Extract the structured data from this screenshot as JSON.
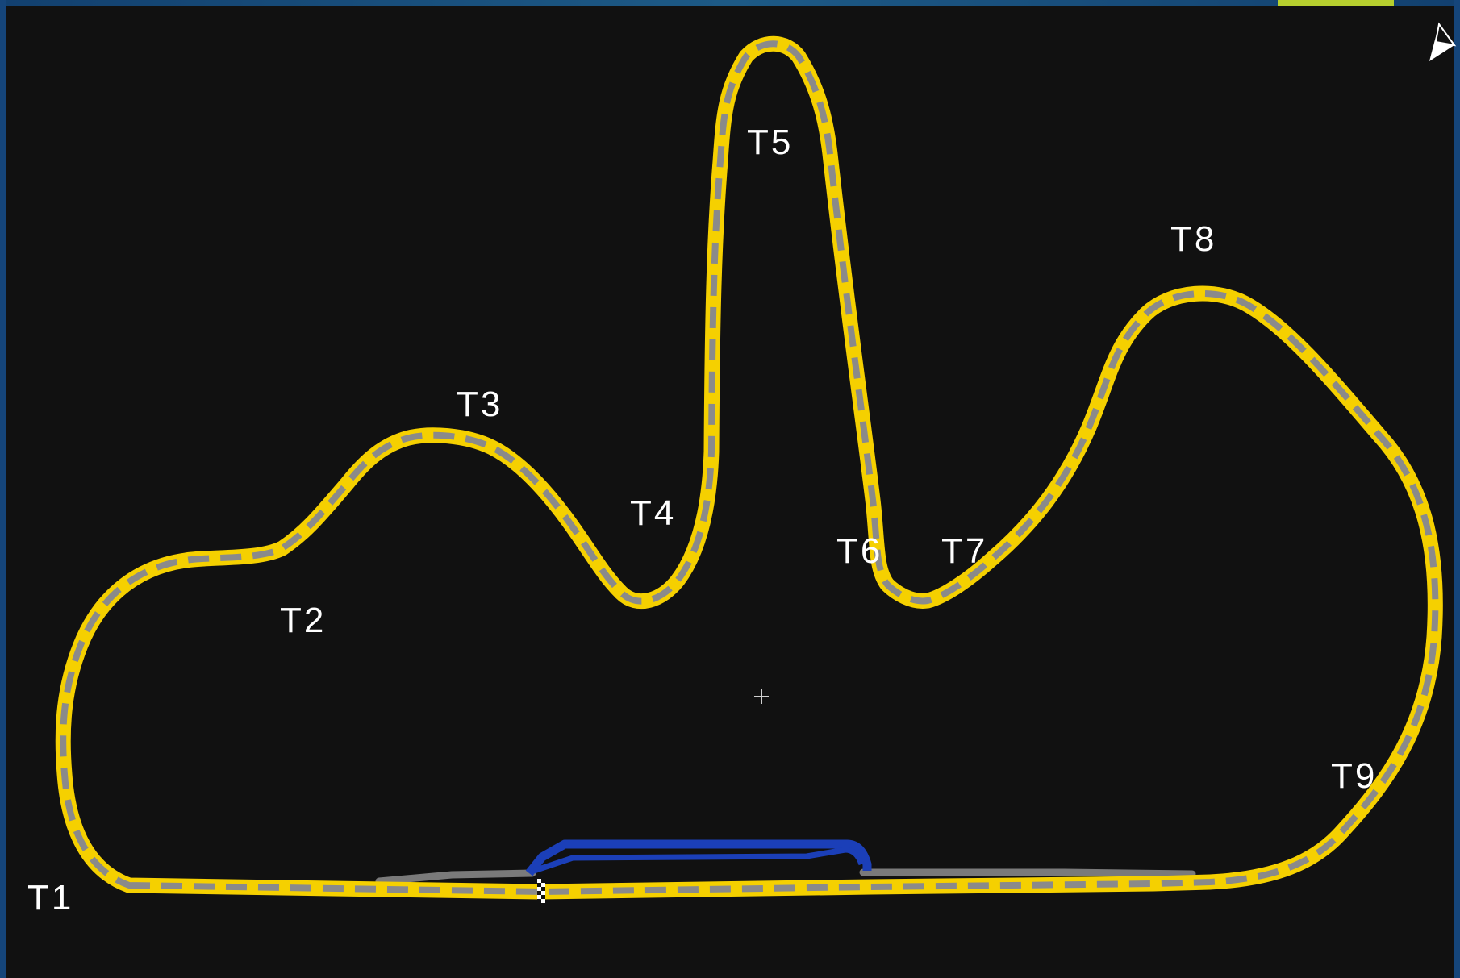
{
  "map": {
    "turns": [
      {
        "id": "t1",
        "label": "T1"
      },
      {
        "id": "t2",
        "label": "T2"
      },
      {
        "id": "t3",
        "label": "T3"
      },
      {
        "id": "t4",
        "label": "T4"
      },
      {
        "id": "t5",
        "label": "T5"
      },
      {
        "id": "t6",
        "label": "T6"
      },
      {
        "id": "t7",
        "label": "T7"
      },
      {
        "id": "t8",
        "label": "T8"
      },
      {
        "id": "t9",
        "label": "T9"
      }
    ],
    "icons": {
      "compass": "north-arrow-icon",
      "center": "crosshair-icon",
      "finish": "checkered-flag-icon"
    },
    "colors": {
      "background": "#111111",
      "frame": "#15457a",
      "track_edge": "#f5d000",
      "track_surface": "#8a8a8a",
      "pit_lane": "#1b3fb8",
      "pit_road": "#7a7a7a",
      "accent_bar": "#b6cf2e"
    }
  }
}
